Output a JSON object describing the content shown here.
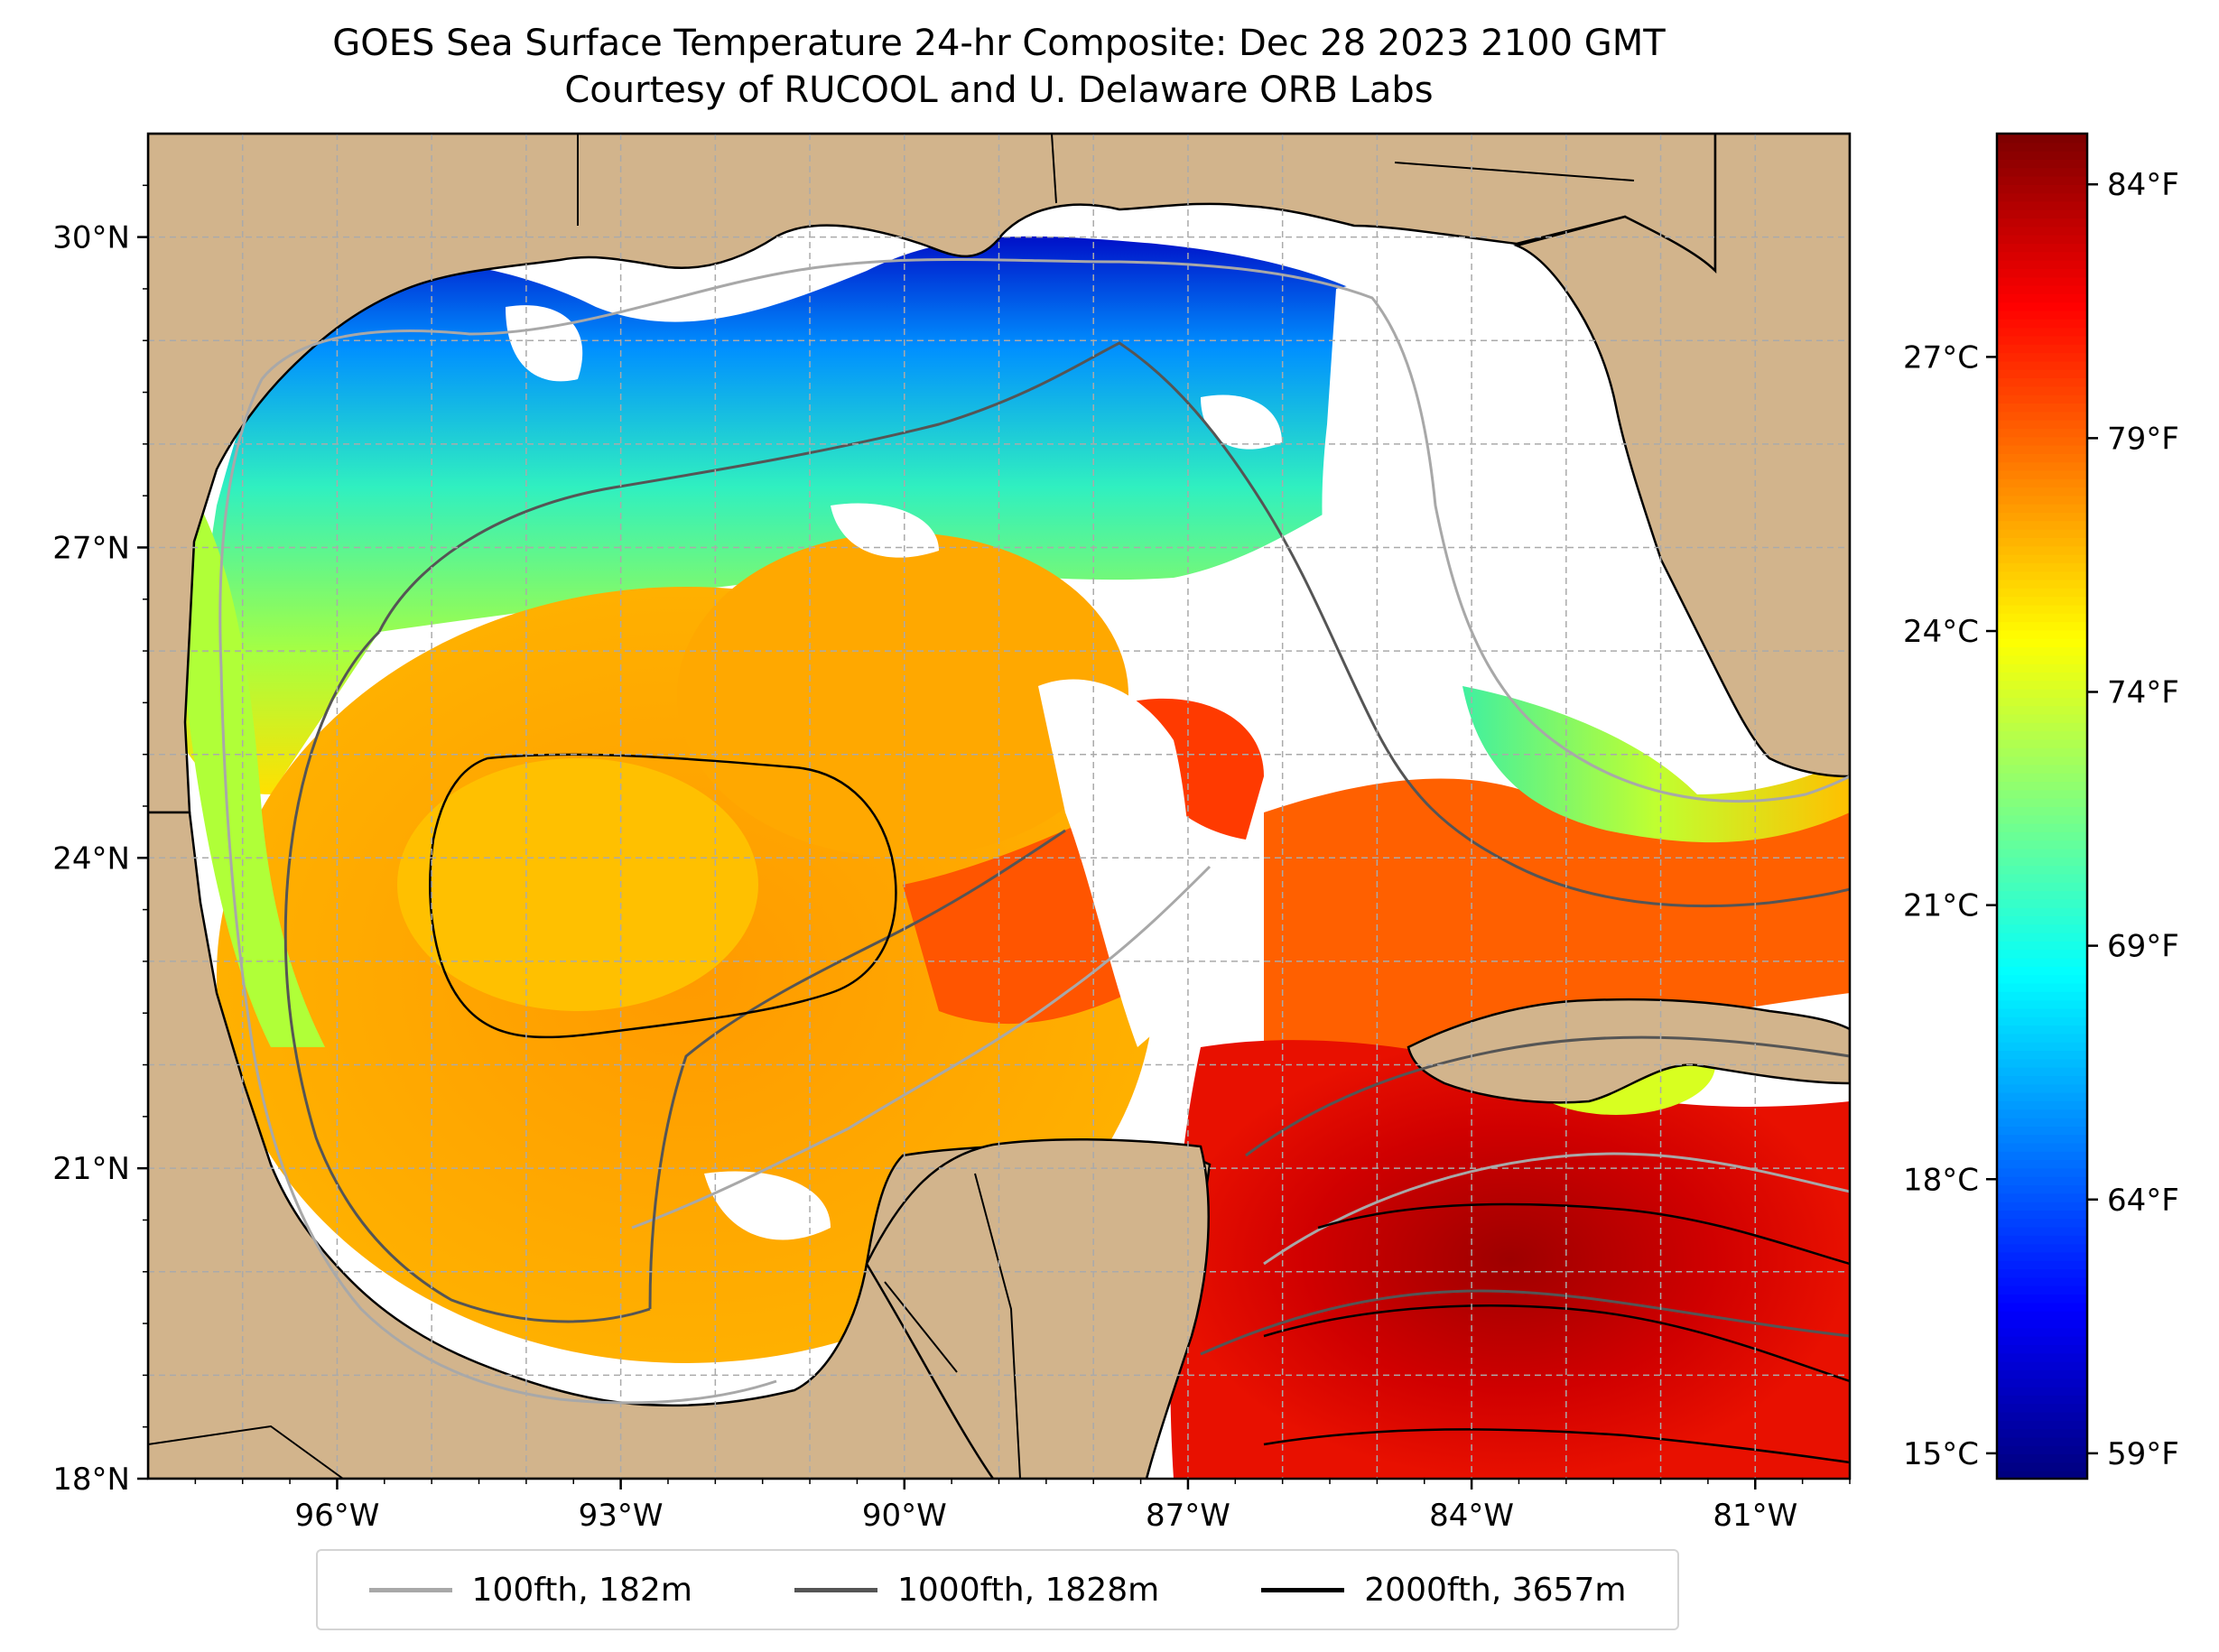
{
  "title": {
    "line1": "GOES Sea Surface Temperature 24-hr Composite: Dec 28 2023 2100 GMT",
    "line2": "Courtesy of RUCOOL and U. Delaware ORB Labs"
  },
  "map": {
    "lon_range": [
      -98.0,
      -80.0
    ],
    "lat_range": [
      18.0,
      31.0
    ],
    "lat_ticks": [
      {
        "value": 18,
        "label": "18°N"
      },
      {
        "value": 21,
        "label": "21°N"
      },
      {
        "value": 24,
        "label": "24°N"
      },
      {
        "value": 27,
        "label": "27°N"
      },
      {
        "value": 30,
        "label": "30°N"
      }
    ],
    "lon_ticks": [
      {
        "value": -96,
        "label": "96°W"
      },
      {
        "value": -93,
        "label": "93°W"
      },
      {
        "value": -90,
        "label": "90°W"
      },
      {
        "value": -87,
        "label": "87°W"
      },
      {
        "value": -84,
        "label": "84°W"
      },
      {
        "value": -81,
        "label": "81°W"
      }
    ],
    "grid": true,
    "colors": {
      "land": "#d2b48c",
      "no_data": "#ffffff",
      "grid": "#aaaaaa"
    }
  },
  "colorbar": {
    "colormap": "jet",
    "range_f": [
      58.5,
      85.0
    ],
    "fahrenheit_ticks": [
      {
        "value": 59,
        "label": "59°F"
      },
      {
        "value": 64,
        "label": "64°F"
      },
      {
        "value": 69,
        "label": "69°F"
      },
      {
        "value": 74,
        "label": "74°F"
      },
      {
        "value": 79,
        "label": "79°F"
      },
      {
        "value": 84,
        "label": "84°F"
      }
    ],
    "celsius_ticks": [
      {
        "value": 15,
        "label": "15°C"
      },
      {
        "value": 18,
        "label": "18°C"
      },
      {
        "value": 21,
        "label": "21°C"
      },
      {
        "value": 24,
        "label": "24°C"
      },
      {
        "value": 27,
        "label": "27°C"
      }
    ]
  },
  "legend": {
    "entries": [
      {
        "label": "100fth, 182m",
        "color": "#a8a8a8"
      },
      {
        "label": "1000fth, 1828m",
        "color": "#555555"
      },
      {
        "label": "2000fth, 3657m",
        "color": "#000000"
      }
    ]
  }
}
